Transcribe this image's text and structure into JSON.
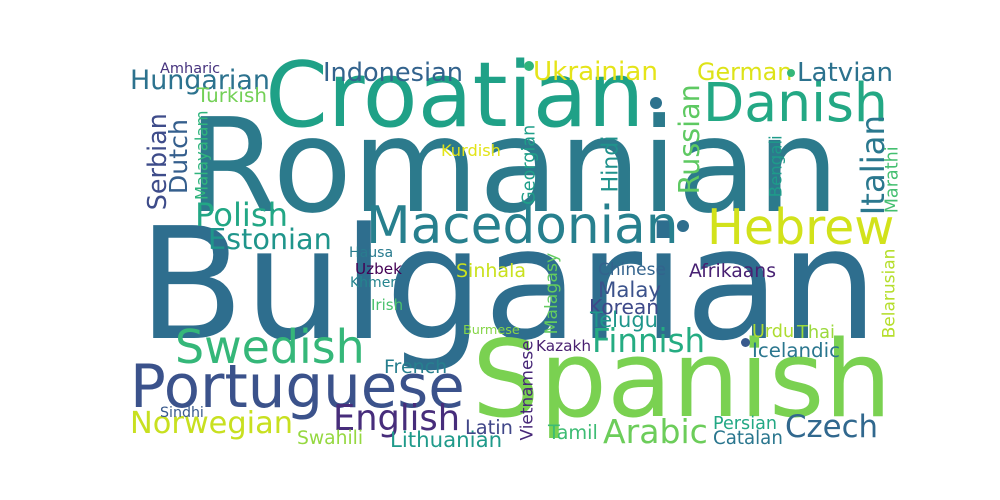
{
  "words": [
    {
      "id": "romanian",
      "text": "Romanian",
      "color": "#2c7a8c"
    },
    {
      "id": "bulgarian",
      "text": "Bulgarian",
      "color": "#2e6e8e"
    },
    {
      "id": "spanish",
      "text": "Spanish",
      "color": "#7ad151"
    },
    {
      "id": "croatian",
      "text": "Croatian",
      "color": "#1fa187"
    },
    {
      "id": "danish",
      "text": "Danish",
      "color": "#23a884"
    },
    {
      "id": "macedonian",
      "text": "Macedonian",
      "color": "#27808e"
    },
    {
      "id": "hebrew",
      "text": "Hebrew",
      "color": "#d2e21b"
    },
    {
      "id": "portuguese",
      "text": "Portuguese",
      "color": "#3b528b"
    },
    {
      "id": "swedish",
      "text": "Swedish",
      "color": "#35b779"
    },
    {
      "id": "hungarian",
      "text": "Hungarian",
      "color": "#2c728e"
    },
    {
      "id": "english",
      "text": "English",
      "color": "#472d7b"
    },
    {
      "id": "norwegian",
      "text": "Norwegian",
      "color": "#c8e020"
    },
    {
      "id": "finnish",
      "text": "Finnish",
      "color": "#25ac82"
    },
    {
      "id": "czech",
      "text": "Czech",
      "color": "#31688e"
    },
    {
      "id": "arabic",
      "text": "Arabic",
      "color": "#6ccd5a"
    },
    {
      "id": "russian",
      "text": "Russian",
      "color": "#5ec962"
    },
    {
      "id": "serbian",
      "text": "Serbian",
      "color": "#3e4c8a"
    },
    {
      "id": "dutch",
      "text": "Dutch",
      "color": "#355f8d"
    },
    {
      "id": "polish",
      "text": "Polish",
      "color": "#22a785"
    },
    {
      "id": "estonian",
      "text": "Estonian",
      "color": "#1f958b"
    },
    {
      "id": "indonesian",
      "text": "Indonesian",
      "color": "#33638d"
    },
    {
      "id": "ukrainian",
      "text": "Ukrainian",
      "color": "#e5e419"
    },
    {
      "id": "german",
      "text": "German",
      "color": "#dde318"
    },
    {
      "id": "latvian",
      "text": "Latvian",
      "color": "#2c728e"
    },
    {
      "id": "italian",
      "text": "Italian",
      "color": "#2a788e"
    },
    {
      "id": "malay",
      "text": "Malay",
      "color": "#3b528b"
    },
    {
      "id": "amharic",
      "text": "Amharic",
      "color": "#46337e"
    },
    {
      "id": "turkish",
      "text": "Turkish",
      "color": "#73d056"
    },
    {
      "id": "malayalam",
      "text": "Malayalam",
      "color": "#2fb47c"
    },
    {
      "id": "kurdish",
      "text": "Kurdish",
      "color": "#e2e418"
    },
    {
      "id": "georgian",
      "text": "Georgian",
      "color": "#1f9e89"
    },
    {
      "id": "hindi",
      "text": "Hindi",
      "color": "#20928c"
    },
    {
      "id": "bengali",
      "text": "Bengali",
      "color": "#1e9b8a"
    },
    {
      "id": "marathi",
      "text": "Marathi",
      "color": "#44bf70"
    },
    {
      "id": "hausa",
      "text": "Hausa",
      "color": "#297b8e"
    },
    {
      "id": "uzbek",
      "text": "Uzbek",
      "color": "#440154"
    },
    {
      "id": "khmer",
      "text": "Khmer",
      "color": "#25848e"
    },
    {
      "id": "irish",
      "text": "Irish",
      "color": "#4ac16d"
    },
    {
      "id": "sinhala",
      "text": "Sinhala",
      "color": "#cae11f"
    },
    {
      "id": "malagasy",
      "text": "Malagasy",
      "color": "#63cb5f"
    },
    {
      "id": "chinese",
      "text": "Chinese",
      "color": "#33638d"
    },
    {
      "id": "afrikaans",
      "text": "Afrikaans",
      "color": "#482173"
    },
    {
      "id": "belarusian",
      "text": "Belarusian",
      "color": "#b5de2b"
    },
    {
      "id": "korean",
      "text": "Korean",
      "color": "#3e4989"
    },
    {
      "id": "telugu",
      "text": "Telugu",
      "color": "#1f968b"
    },
    {
      "id": "burmese",
      "text": "Burmese",
      "color": "#86d549"
    },
    {
      "id": "vietnamese",
      "text": "Vietnamese",
      "color": "#482878"
    },
    {
      "id": "kazakh",
      "text": "Kazakh",
      "color": "#481f70"
    },
    {
      "id": "urdu",
      "text": "Urdu",
      "color": "#addc30"
    },
    {
      "id": "thai",
      "text": "Thai",
      "color": "#9bd93c"
    },
    {
      "id": "icelandic",
      "text": "Icelandic",
      "color": "#2a768e"
    },
    {
      "id": "french",
      "text": "French",
      "color": "#277f8e"
    },
    {
      "id": "sindhi",
      "text": "Sindhi",
      "color": "#38598c"
    },
    {
      "id": "swahili",
      "text": "Swahili",
      "color": "#95d840"
    },
    {
      "id": "lithuanian",
      "text": "Lithuanian",
      "color": "#1f9a8a"
    },
    {
      "id": "latin",
      "text": "Latin",
      "color": "#404688"
    },
    {
      "id": "tamil",
      "text": "Tamil",
      "color": "#3dbc74"
    },
    {
      "id": "persian",
      "text": "Persian",
      "color": "#22a884"
    },
    {
      "id": "catalan",
      "text": "Catalan",
      "color": "#2a768e"
    }
  ],
  "dots": [
    {
      "id": "dot-croatian",
      "color": "#2c728e"
    },
    {
      "id": "dot-macedonian",
      "color": "#2e6e8e"
    },
    {
      "id": "dot-ukrainian",
      "color": "#2fb47c"
    },
    {
      "id": "dot-latvian",
      "color": "#35b779"
    },
    {
      "id": "dot-icelandic",
      "color": "#38598c"
    }
  ]
}
